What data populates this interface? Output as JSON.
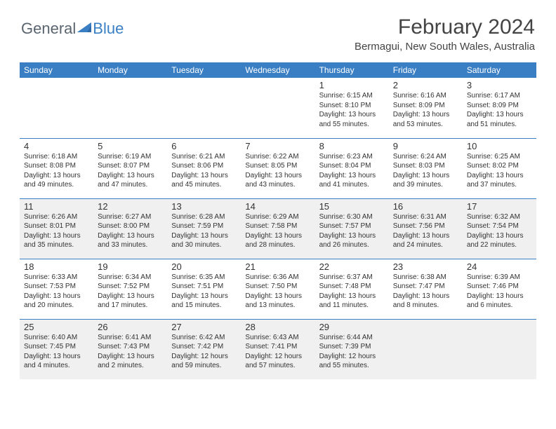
{
  "brand": {
    "word1": "General",
    "word2": "Blue"
  },
  "colors": {
    "header_bg": "#3a7fc4",
    "header_text": "#ffffff",
    "cell_border": "#3a7fc4",
    "shaded_bg": "#f0f0f0",
    "text": "#333333",
    "logo_gray": "#5a6570",
    "logo_blue": "#3a7fc4"
  },
  "title": "February 2024",
  "location": "Bermagui, New South Wales, Australia",
  "day_headers": [
    "Sunday",
    "Monday",
    "Tuesday",
    "Wednesday",
    "Thursday",
    "Friday",
    "Saturday"
  ],
  "weeks": [
    {
      "shaded": false,
      "days": [
        null,
        null,
        null,
        null,
        {
          "n": "1",
          "sunrise": "6:15 AM",
          "sunset": "8:10 PM",
          "daylight": "13 hours and 55 minutes."
        },
        {
          "n": "2",
          "sunrise": "6:16 AM",
          "sunset": "8:09 PM",
          "daylight": "13 hours and 53 minutes."
        },
        {
          "n": "3",
          "sunrise": "6:17 AM",
          "sunset": "8:09 PM",
          "daylight": "13 hours and 51 minutes."
        }
      ]
    },
    {
      "shaded": false,
      "days": [
        {
          "n": "4",
          "sunrise": "6:18 AM",
          "sunset": "8:08 PM",
          "daylight": "13 hours and 49 minutes."
        },
        {
          "n": "5",
          "sunrise": "6:19 AM",
          "sunset": "8:07 PM",
          "daylight": "13 hours and 47 minutes."
        },
        {
          "n": "6",
          "sunrise": "6:21 AM",
          "sunset": "8:06 PM",
          "daylight": "13 hours and 45 minutes."
        },
        {
          "n": "7",
          "sunrise": "6:22 AM",
          "sunset": "8:05 PM",
          "daylight": "13 hours and 43 minutes."
        },
        {
          "n": "8",
          "sunrise": "6:23 AM",
          "sunset": "8:04 PM",
          "daylight": "13 hours and 41 minutes."
        },
        {
          "n": "9",
          "sunrise": "6:24 AM",
          "sunset": "8:03 PM",
          "daylight": "13 hours and 39 minutes."
        },
        {
          "n": "10",
          "sunrise": "6:25 AM",
          "sunset": "8:02 PM",
          "daylight": "13 hours and 37 minutes."
        }
      ]
    },
    {
      "shaded": true,
      "days": [
        {
          "n": "11",
          "sunrise": "6:26 AM",
          "sunset": "8:01 PM",
          "daylight": "13 hours and 35 minutes."
        },
        {
          "n": "12",
          "sunrise": "6:27 AM",
          "sunset": "8:00 PM",
          "daylight": "13 hours and 33 minutes."
        },
        {
          "n": "13",
          "sunrise": "6:28 AM",
          "sunset": "7:59 PM",
          "daylight": "13 hours and 30 minutes."
        },
        {
          "n": "14",
          "sunrise": "6:29 AM",
          "sunset": "7:58 PM",
          "daylight": "13 hours and 28 minutes."
        },
        {
          "n": "15",
          "sunrise": "6:30 AM",
          "sunset": "7:57 PM",
          "daylight": "13 hours and 26 minutes."
        },
        {
          "n": "16",
          "sunrise": "6:31 AM",
          "sunset": "7:56 PM",
          "daylight": "13 hours and 24 minutes."
        },
        {
          "n": "17",
          "sunrise": "6:32 AM",
          "sunset": "7:54 PM",
          "daylight": "13 hours and 22 minutes."
        }
      ]
    },
    {
      "shaded": false,
      "days": [
        {
          "n": "18",
          "sunrise": "6:33 AM",
          "sunset": "7:53 PM",
          "daylight": "13 hours and 20 minutes."
        },
        {
          "n": "19",
          "sunrise": "6:34 AM",
          "sunset": "7:52 PM",
          "daylight": "13 hours and 17 minutes."
        },
        {
          "n": "20",
          "sunrise": "6:35 AM",
          "sunset": "7:51 PM",
          "daylight": "13 hours and 15 minutes."
        },
        {
          "n": "21",
          "sunrise": "6:36 AM",
          "sunset": "7:50 PM",
          "daylight": "13 hours and 13 minutes."
        },
        {
          "n": "22",
          "sunrise": "6:37 AM",
          "sunset": "7:48 PM",
          "daylight": "13 hours and 11 minutes."
        },
        {
          "n": "23",
          "sunrise": "6:38 AM",
          "sunset": "7:47 PM",
          "daylight": "13 hours and 8 minutes."
        },
        {
          "n": "24",
          "sunrise": "6:39 AM",
          "sunset": "7:46 PM",
          "daylight": "13 hours and 6 minutes."
        }
      ]
    },
    {
      "shaded": true,
      "days": [
        {
          "n": "25",
          "sunrise": "6:40 AM",
          "sunset": "7:45 PM",
          "daylight": "13 hours and 4 minutes."
        },
        {
          "n": "26",
          "sunrise": "6:41 AM",
          "sunset": "7:43 PM",
          "daylight": "13 hours and 2 minutes."
        },
        {
          "n": "27",
          "sunrise": "6:42 AM",
          "sunset": "7:42 PM",
          "daylight": "12 hours and 59 minutes."
        },
        {
          "n": "28",
          "sunrise": "6:43 AM",
          "sunset": "7:41 PM",
          "daylight": "12 hours and 57 minutes."
        },
        {
          "n": "29",
          "sunrise": "6:44 AM",
          "sunset": "7:39 PM",
          "daylight": "12 hours and 55 minutes."
        },
        null,
        null
      ]
    }
  ]
}
